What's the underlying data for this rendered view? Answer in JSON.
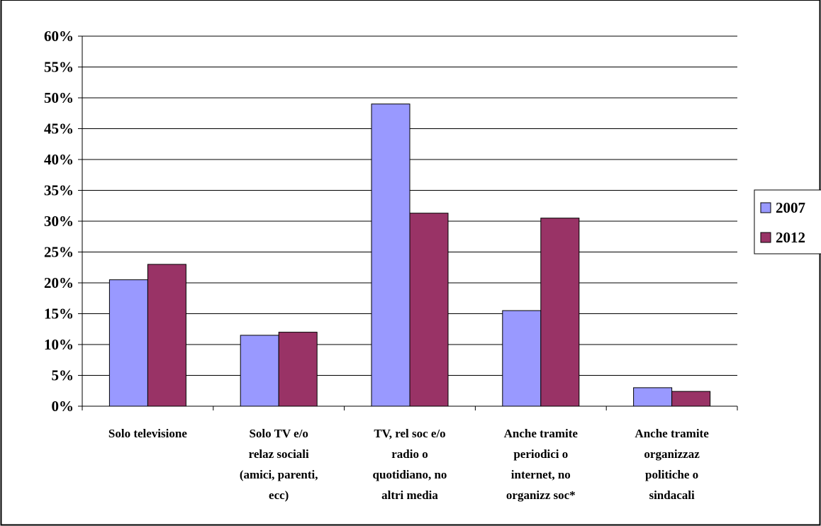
{
  "chart_data": {
    "type": "bar",
    "title": "",
    "xlabel": "",
    "ylabel": "",
    "ylim": [
      0,
      60
    ],
    "ytick_step": 5,
    "ytick_suffix": "%",
    "grid": true,
    "legend_position": "right",
    "categories": [
      [
        "Solo televisione"
      ],
      [
        "Solo TV e/o",
        "relaz sociali",
        "(amici, parenti,",
        "ecc)"
      ],
      [
        "TV, rel soc e/o",
        "radio o",
        "quotidiano, no",
        "altri media"
      ],
      [
        "Anche tramite",
        "periodici o",
        "internet, no",
        "organizz soc*"
      ],
      [
        "Anche tramite",
        "organizzaz",
        "politiche o",
        "sindacali"
      ]
    ],
    "series": [
      {
        "name": "2007",
        "color": "#9999ff",
        "values": [
          20.5,
          11.5,
          49,
          15.5,
          3
        ]
      },
      {
        "name": "2012",
        "color": "#993366",
        "values": [
          23,
          12,
          31.3,
          30.5,
          2.4
        ]
      }
    ]
  }
}
